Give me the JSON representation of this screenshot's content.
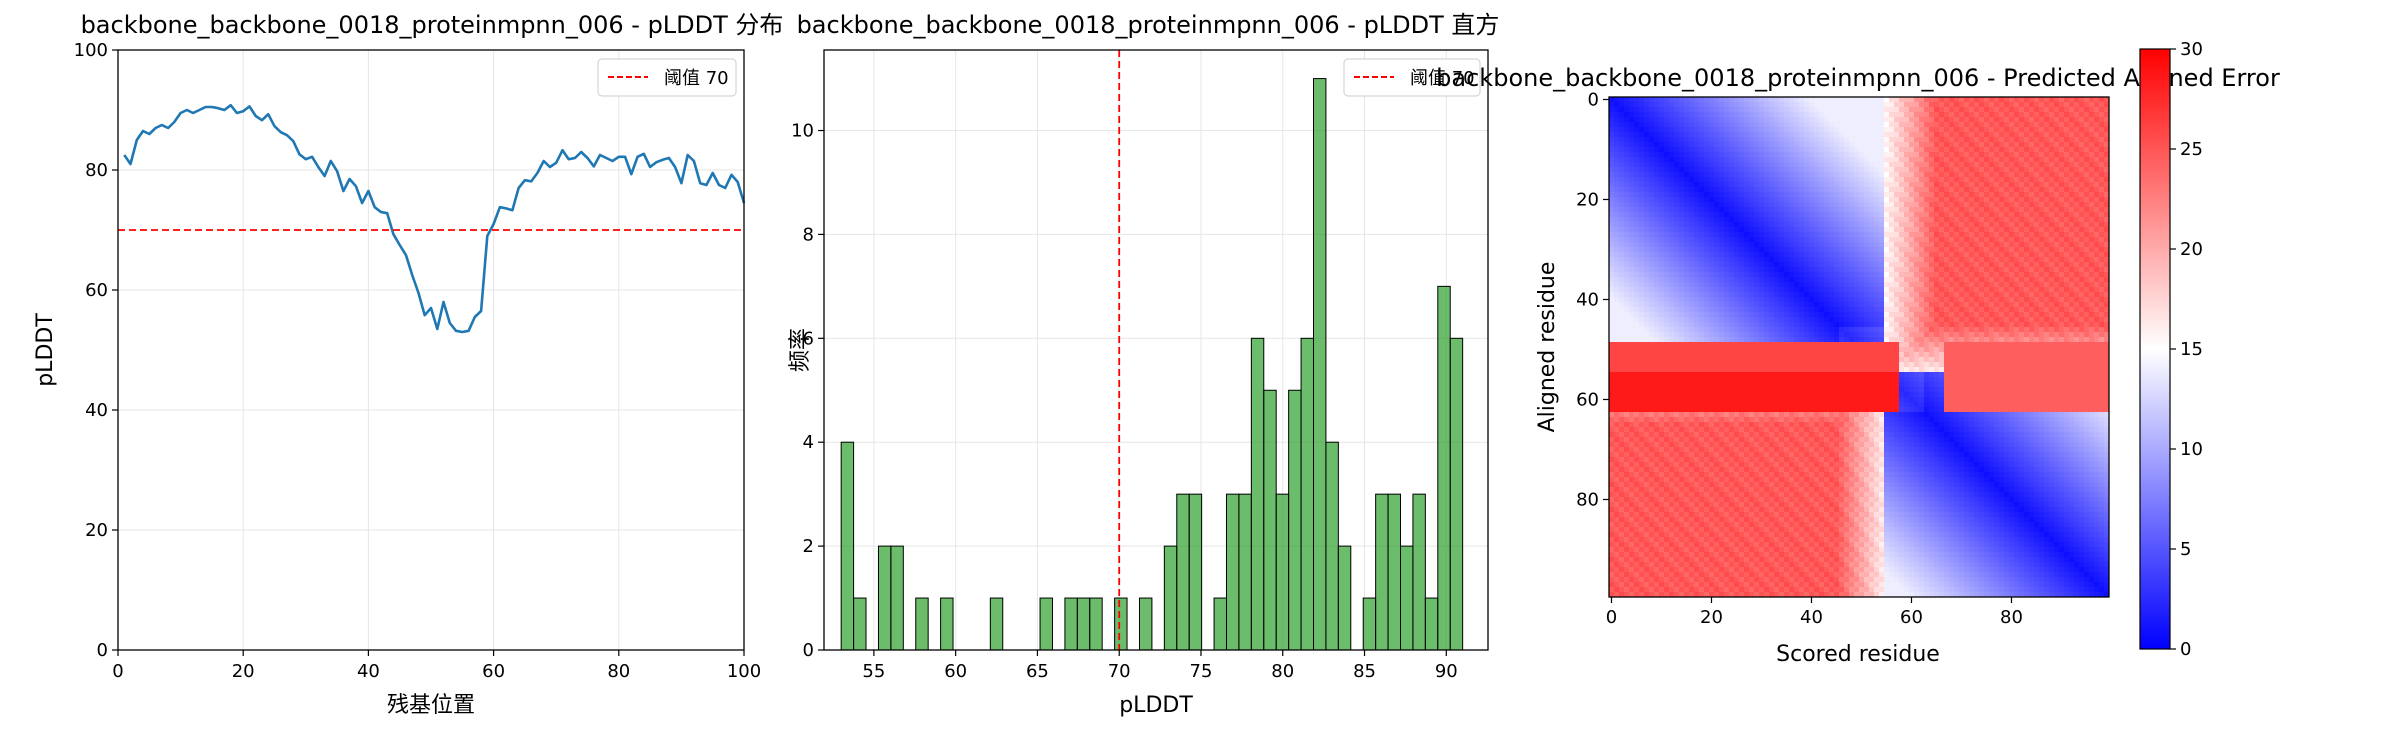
{
  "chart_data": [
    {
      "type": "line",
      "title": "backbone_backbone_0018_proteinmpnn_006 - pLDDT 分布",
      "xlabel": "残基位置",
      "ylabel": "pLDDT",
      "xlim": [
        0,
        100
      ],
      "ylim": [
        0,
        100
      ],
      "xticks": [
        0,
        20,
        40,
        60,
        80,
        100
      ],
      "yticks": [
        0,
        20,
        40,
        60,
        80,
        100
      ],
      "grid": true,
      "legend_position": "top-right",
      "series": [
        {
          "color": "#1f77b4",
          "x": [
            1,
            2,
            3,
            4,
            5,
            6,
            7,
            8,
            9,
            10,
            11,
            12,
            13,
            14,
            15,
            16,
            17,
            18,
            19,
            20,
            21,
            22,
            23,
            24,
            25,
            26,
            27,
            28,
            29,
            30,
            31,
            32,
            33,
            34,
            35,
            36,
            37,
            38,
            39,
            40,
            41,
            42,
            43,
            44,
            45,
            46,
            47,
            48,
            49,
            50,
            51,
            52,
            53,
            54,
            55,
            56,
            57,
            58,
            59,
            60,
            61,
            62,
            63,
            64,
            65,
            66,
            67,
            68,
            69,
            70,
            71,
            72,
            73,
            74,
            75,
            76,
            77,
            78,
            79,
            80,
            81,
            82,
            83,
            84,
            85,
            86,
            87,
            88,
            89,
            90,
            91,
            92,
            93,
            94,
            95,
            96,
            97,
            98,
            99,
            100
          ],
          "y": [
            82.5,
            81,
            85,
            86.5,
            86,
            87,
            87.5,
            87,
            88,
            89.5,
            90,
            89.5,
            90,
            90.5,
            90.5,
            90.3,
            90,
            90.8,
            89.5,
            89.8,
            90.6,
            89,
            88.3,
            89.3,
            87.3,
            86.3,
            85.8,
            84.8,
            82.6,
            81.8,
            82.2,
            80.5,
            79,
            81.5,
            79.8,
            76.5,
            78.5,
            77.3,
            74.5,
            76.5,
            73.8,
            73,
            72.8,
            69.3,
            67.5,
            65.8,
            62.5,
            59.5,
            55.8,
            57,
            53.5,
            58,
            54.5,
            53.2,
            53,
            53.2,
            55.5,
            56.5,
            69,
            71,
            73.8,
            73.6,
            73.3,
            77,
            78.3,
            78.1,
            79.5,
            81.5,
            80.5,
            81.2,
            83.3,
            81.8,
            82,
            83,
            82,
            80.6,
            82.5,
            82,
            81.5,
            82.2,
            82.2,
            79.3,
            82.2,
            82.7,
            80.5,
            81.3,
            81.7,
            82,
            80.5,
            77.8,
            82.5,
            81.5,
            77.8,
            77.5,
            79.5,
            77.5,
            77,
            79.2,
            78,
            74.5
          ]
        },
        {
          "name": "阈值 70",
          "color": "#ff0000",
          "style": "dashed",
          "y_constant": 70
        }
      ]
    },
    {
      "type": "bar",
      "title": "backbone_backbone_0018_proteinmpnn_006 - pLDDT 直方",
      "xlabel": "pLDDT",
      "ylabel": "频率",
      "xlim": [
        51.95,
        92.55
      ],
      "ylim": [
        0,
        11.55
      ],
      "xticks": [
        55,
        60,
        65,
        70,
        75,
        80,
        85,
        90
      ],
      "yticks": [
        0,
        2,
        4,
        6,
        8,
        10
      ],
      "grid": true,
      "legend_position": "top-right",
      "bar_color": "#2ca02c",
      "bins_start": 53.0,
      "bin_width": 0.76,
      "values": [
        4,
        1,
        0,
        2,
        2,
        0,
        1,
        0,
        1,
        0,
        0,
        0,
        1,
        0,
        0,
        0,
        1,
        0,
        1,
        1,
        1,
        0,
        1,
        0,
        1,
        0,
        2,
        3,
        3,
        0,
        1,
        3,
        3,
        6,
        5,
        3,
        5,
        6,
        11,
        4,
        2,
        0,
        1,
        3,
        3,
        2,
        3,
        1,
        7,
        6
      ],
      "threshold": {
        "name": "阈值 70",
        "value": 70,
        "color": "#ff0000",
        "style": "dashed"
      }
    },
    {
      "type": "heatmap",
      "title": "backbone_backbone_0018_proteinmpnn_006 - Predicted Aligned Error",
      "xlabel": "Scored residue",
      "ylabel": "Aligned residue",
      "size": 100,
      "xticks": [
        0,
        20,
        40,
        60,
        80
      ],
      "yticks": [
        0,
        20,
        40,
        60,
        80
      ],
      "colormap": "bwr",
      "vmin": 0,
      "vmax": 30,
      "colorbar_ticks": [
        0,
        5,
        10,
        15,
        20,
        25,
        30
      ],
      "domain_boundary_residue": 55
    }
  ]
}
